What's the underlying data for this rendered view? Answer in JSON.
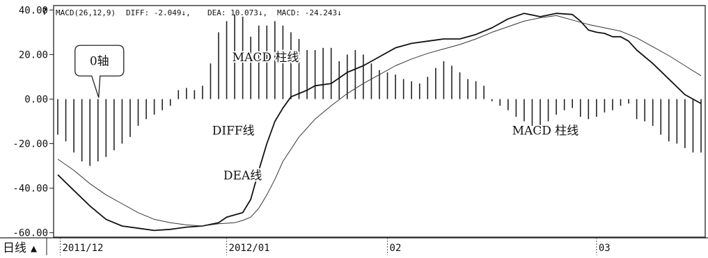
{
  "chart_data": {
    "type": "line",
    "indicator": "MACD",
    "header": {
      "params": "MACD(26,12,9)",
      "diff": "DIFF: -2.049↓,",
      "dea": "DEA: 10.073↓,",
      "macd": "MACD: -24.243↓"
    },
    "ylim": [
      -62,
      42
    ],
    "yticks": [
      {
        "value": 40,
        "label": "40.00"
      },
      {
        "value": 20,
        "label": "20.00"
      },
      {
        "value": 0,
        "label": "0.00"
      },
      {
        "value": -20,
        "label": "-20.00"
      },
      {
        "value": -40,
        "label": "-40.00"
      },
      {
        "value": -60,
        "label": "-60.00"
      }
    ],
    "period_label": "日线",
    "period_marker": "▲",
    "xlim": [
      0,
      80
    ],
    "xticks": [
      {
        "x": 0.3,
        "label": "2011/12"
      },
      {
        "x": 21,
        "label": "2012/01"
      },
      {
        "x": 41,
        "label": "02"
      },
      {
        "x": 67,
        "label": "03"
      }
    ],
    "series": [
      {
        "name": "DIFF线",
        "style": "solid",
        "color": "#111111",
        "x": [
          0,
          2,
          4,
          6,
          8,
          10,
          12,
          14,
          16,
          18,
          20,
          21,
          22,
          23,
          24,
          25,
          26,
          27,
          28,
          29,
          30,
          31,
          32,
          34,
          36,
          38,
          40,
          42,
          44,
          46,
          48,
          50,
          52,
          54,
          56,
          58,
          60,
          62,
          64,
          65,
          66,
          67,
          68,
          69,
          70,
          71,
          72,
          74,
          76,
          78,
          80
        ],
        "y": [
          -34,
          -41,
          -48,
          -54,
          -57,
          -58,
          -59,
          -58.5,
          -57.5,
          -57,
          -55.5,
          -53,
          -52,
          -51,
          -45,
          -32,
          -20,
          -10,
          -4,
          1,
          2.5,
          4,
          6,
          7,
          12,
          15,
          19,
          23,
          25,
          26,
          27,
          27,
          29,
          32,
          36,
          38.5,
          37,
          38.5,
          38,
          35,
          31,
          30,
          29.5,
          28,
          28,
          26,
          22,
          16,
          9,
          2,
          -2
        ]
      },
      {
        "name": "DEA线",
        "style": "thin",
        "color": "#333333",
        "x": [
          0,
          2,
          4,
          6,
          8,
          10,
          12,
          14,
          16,
          18,
          20,
          22,
          23,
          24,
          25,
          26,
          27,
          28,
          30,
          32,
          34,
          36,
          38,
          40,
          42,
          44,
          46,
          48,
          50,
          52,
          54,
          56,
          58,
          60,
          62,
          64,
          66,
          68,
          70,
          72,
          74,
          76,
          78,
          80
        ],
        "y": [
          -27,
          -32,
          -38,
          -43,
          -47,
          -51,
          -54,
          -55.5,
          -56.5,
          -57,
          -56,
          -55.5,
          -54.5,
          -53,
          -49,
          -43,
          -36,
          -28,
          -17,
          -9,
          -3,
          2.5,
          7,
          11,
          15,
          18,
          20.5,
          22.5,
          24.5,
          27,
          30,
          32.5,
          35,
          36.5,
          37.5,
          35.5,
          33.5,
          32,
          30.5,
          27.5,
          23.5,
          19.5,
          15,
          10.5
        ]
      }
    ],
    "histogram": {
      "name": "MACD 柱线",
      "x": [
        0,
        1,
        2,
        3,
        4,
        5,
        6,
        7,
        8,
        9,
        10,
        11,
        12,
        13,
        14,
        15,
        16,
        17,
        18,
        19,
        20,
        21,
        22,
        23,
        24,
        25,
        26,
        27,
        28,
        29,
        30,
        31,
        32,
        33,
        34,
        35,
        36,
        37,
        38,
        39,
        40,
        41,
        42,
        43,
        44,
        45,
        46,
        47,
        48,
        49,
        50,
        51,
        52,
        53,
        54,
        55,
        56,
        57,
        58,
        59,
        60,
        61,
        62,
        63,
        64,
        65,
        66,
        67,
        68,
        69,
        70,
        71,
        72,
        73,
        74,
        75,
        76,
        77,
        78,
        79,
        80
      ],
      "values": [
        -16,
        -19,
        -24,
        -28,
        -30,
        -28,
        -26,
        -23,
        -20,
        -17,
        -12,
        -9,
        -7,
        -5,
        -3,
        4,
        5,
        4,
        6,
        16,
        30,
        35,
        38,
        37,
        28,
        33,
        33,
        35,
        33,
        30,
        27,
        22,
        22,
        23,
        23,
        17,
        20,
        22,
        20,
        16,
        13,
        12,
        11,
        9,
        8,
        7,
        10,
        14,
        17,
        15,
        12,
        9,
        8,
        6,
        -1,
        -3,
        -5,
        -8,
        -10,
        -12,
        -15,
        -10,
        -7,
        -5,
        -4,
        -8,
        -9,
        -8,
        -6,
        -5,
        -3,
        -2,
        -9,
        -10,
        -12,
        -16,
        -19,
        -20,
        -22,
        -24,
        -24
      ]
    },
    "annotations": [
      {
        "text": "0轴",
        "type": "callout",
        "x": 5,
        "y": 16,
        "target_x": 5,
        "target_y": 0
      },
      {
        "text": "MACD 柱线",
        "type": "label",
        "x": 21.7,
        "y": 17
      },
      {
        "text": "DIFF线",
        "type": "label",
        "x": 19.2,
        "y": -16
      },
      {
        "text": "DEA线",
        "type": "label",
        "x": 20.6,
        "y": -36
      },
      {
        "text": "MACD 柱线",
        "type": "label",
        "x": 56.5,
        "y": -16
      }
    ],
    "grid": false,
    "legend": "none"
  }
}
